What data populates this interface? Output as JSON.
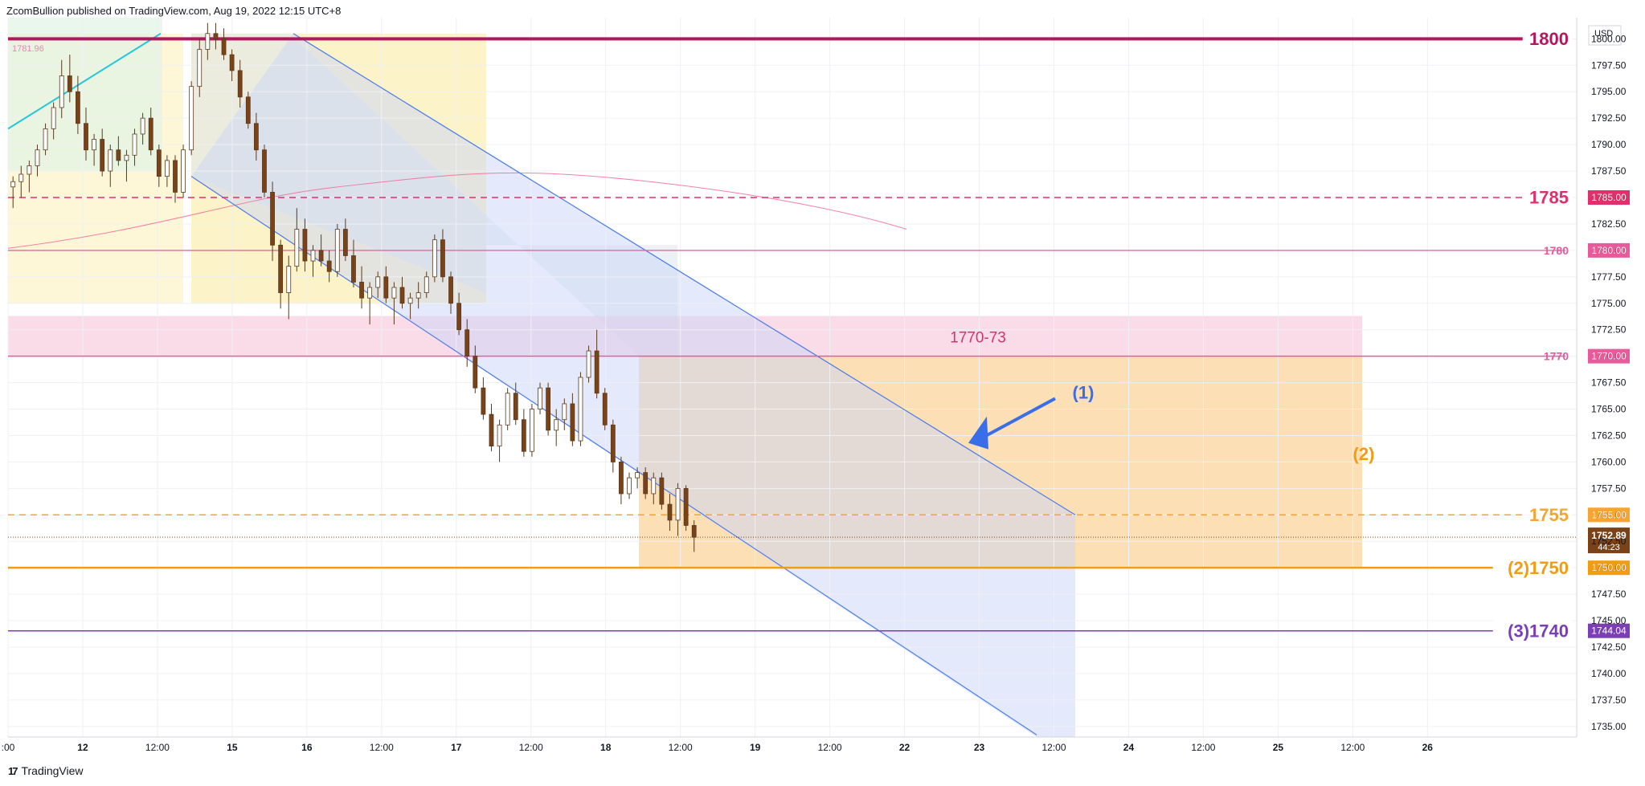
{
  "header": {
    "text": "ZcomBullion published on TradingView.com, Aug 19, 2022 12:15 UTC+8"
  },
  "footer": {
    "logo": "17",
    "brand": "TradingView"
  },
  "chart_data": {
    "type": "candlestick",
    "currency": "USD",
    "ylim": [
      1734,
      1802
    ],
    "y_ticks": [
      "1735.00",
      "1737.50",
      "1740.00",
      "1742.50",
      "1745.00",
      "1747.50",
      "1750.00",
      "1752.50",
      "1755.00",
      "1757.50",
      "1760.00",
      "1762.50",
      "1765.00",
      "1767.50",
      "1770.00",
      "1772.50",
      "1775.00",
      "1777.50",
      "1780.00",
      "1782.50",
      "1785.00",
      "1787.50",
      "1790.00",
      "1792.50",
      "1795.00",
      "1797.50",
      "1800.00"
    ],
    "x_ticks": [
      {
        "t": 0,
        "label": ":00"
      },
      {
        "t": 12,
        "label": "12"
      },
      {
        "t": 24,
        "label": "12:00"
      },
      {
        "t": 36,
        "label": "15"
      },
      {
        "t": 48,
        "label": "16"
      },
      {
        "t": 60,
        "label": "12:00"
      },
      {
        "t": 72,
        "label": "17"
      },
      {
        "t": 84,
        "label": "12:00"
      },
      {
        "t": 96,
        "label": "18"
      },
      {
        "t": 108,
        "label": "12:00"
      },
      {
        "t": 120,
        "label": "19"
      },
      {
        "t": 132,
        "label": "12:00"
      },
      {
        "t": 144,
        "label": "22"
      },
      {
        "t": 156,
        "label": "23"
      },
      {
        "t": 168,
        "label": "12:00"
      },
      {
        "t": 180,
        "label": "24"
      },
      {
        "t": 192,
        "label": "12:00"
      },
      {
        "t": 204,
        "label": "25"
      },
      {
        "t": 216,
        "label": "12:00"
      },
      {
        "t": 228,
        "label": "26"
      }
    ],
    "colors": {
      "up": "#ffffff",
      "down": "#7a4218",
      "wick": "#5a3a1e",
      "level_1800": "#b5175f",
      "level_1785": "#e0306c",
      "level_1780": "#e85a9a",
      "level_1770": "#e85a9a",
      "level_1755": "#f7a431",
      "level_1750": "#f39c12",
      "level_1740": "#7a3fb5",
      "channel": "#4e7de8",
      "annotation_blue": "#3a6ee8",
      "annotation_orange": "#f39c12"
    },
    "levels": [
      {
        "value": 1800,
        "label": "1800",
        "tag": "",
        "color": "#b5175f",
        "style": "solid",
        "width": 4,
        "font": 22
      },
      {
        "value": 1785,
        "label": "1785",
        "tag": "1785.00",
        "color": "#e0306c",
        "style": "dash",
        "width": 1.5,
        "font": 22
      },
      {
        "value": 1780,
        "label": "1780",
        "tag": "1780.00",
        "color": "#e85a9a",
        "style": "solid",
        "width": 1.2,
        "font": 14
      },
      {
        "value": 1770,
        "label": "1770",
        "tag": "1770.00",
        "color": "#e85a9a",
        "style": "solid",
        "width": 1.5,
        "font": 14
      },
      {
        "value": 1755,
        "label": "1755",
        "tag": "1755.00",
        "color": "#f7a431",
        "style": "dash",
        "width": 1.5,
        "font": 22
      },
      {
        "value": 1750,
        "label": "(2)1750",
        "tag": "1750.00",
        "color": "#f39c12",
        "style": "solid",
        "width": 2.5,
        "font": 22
      },
      {
        "value": 1744.04,
        "label": "(3)1740",
        "tag": "1744.04",
        "color": "#7a3fb5",
        "style": "solid",
        "width": 1.5,
        "font": 22
      }
    ],
    "current_price": {
      "value": 1752.89,
      "label": "1752.89",
      "countdown": "44:23",
      "color": "#7a4218"
    },
    "top_left_value": "1781.96",
    "zone_label": "1770-73",
    "annotation_1": "(1)",
    "annotation_2": "(2)",
    "candles": [
      [
        1786,
        1787,
        1784,
        1786.5
      ],
      [
        1786.5,
        1788,
        1785,
        1787.2
      ],
      [
        1787.2,
        1788.5,
        1785.5,
        1788
      ],
      [
        1788,
        1790,
        1787,
        1789.5
      ],
      [
        1789.5,
        1792,
        1789,
        1791.5
      ],
      [
        1791.5,
        1794,
        1790.5,
        1793.5
      ],
      [
        1793.5,
        1798,
        1792.5,
        1796.5
      ],
      [
        1796.5,
        1798.5,
        1794,
        1795
      ],
      [
        1795,
        1796.5,
        1791,
        1792
      ],
      [
        1792,
        1793.5,
        1788.5,
        1789.5
      ],
      [
        1789.5,
        1791,
        1788,
        1790.5
      ],
      [
        1790.5,
        1791.5,
        1787,
        1787.5
      ],
      [
        1787.5,
        1790,
        1786,
        1789.5
      ],
      [
        1789.5,
        1790.8,
        1788,
        1788.5
      ],
      [
        1788.5,
        1789.5,
        1786.5,
        1789
      ],
      [
        1789,
        1791.5,
        1788,
        1791
      ],
      [
        1791,
        1793,
        1790,
        1792.5
      ],
      [
        1792.5,
        1793.5,
        1789,
        1789.5
      ],
      [
        1789.5,
        1790,
        1786,
        1787
      ],
      [
        1787,
        1789,
        1786,
        1788.5
      ],
      [
        1788.5,
        1789,
        1784.5,
        1785.5
      ],
      [
        1785.5,
        1790,
        1785,
        1789.5
      ],
      [
        1789.5,
        1796,
        1789,
        1795.5
      ],
      [
        1795.5,
        1800,
        1794.5,
        1799
      ],
      [
        1799,
        1801.5,
        1798,
        1800.5
      ],
      [
        1800.5,
        1801.5,
        1799,
        1800
      ],
      [
        1800,
        1801,
        1798,
        1798.5
      ],
      [
        1798.5,
        1799,
        1796,
        1797
      ],
      [
        1797,
        1798,
        1793.5,
        1794.5
      ],
      [
        1794.5,
        1795,
        1791.5,
        1792
      ],
      [
        1792,
        1793,
        1788.5,
        1789.5
      ],
      [
        1789.5,
        1790,
        1785,
        1785.5
      ],
      [
        1785.5,
        1786.5,
        1779,
        1780.5
      ],
      [
        1780.5,
        1781,
        1774.5,
        1776
      ],
      [
        1776,
        1779.5,
        1773.5,
        1778.5
      ],
      [
        1778.5,
        1784,
        1778,
        1782
      ],
      [
        1782,
        1783,
        1778,
        1779
      ],
      [
        1779,
        1780.5,
        1777.5,
        1780
      ],
      [
        1780,
        1781.5,
        1778.5,
        1779
      ],
      [
        1779,
        1780,
        1777,
        1778
      ],
      [
        1778,
        1782.5,
        1777.5,
        1782
      ],
      [
        1782,
        1783,
        1779,
        1779.5
      ],
      [
        1779.5,
        1781,
        1776.5,
        1777
      ],
      [
        1777,
        1778.5,
        1774.5,
        1775.5
      ],
      [
        1775.5,
        1777,
        1773,
        1776.5
      ],
      [
        1776.5,
        1778,
        1775.5,
        1777.5
      ],
      [
        1777.5,
        1778.5,
        1775,
        1775.5
      ],
      [
        1775.5,
        1777,
        1773,
        1776.5
      ],
      [
        1776.5,
        1777.5,
        1774.5,
        1775
      ],
      [
        1775,
        1776,
        1773.5,
        1775.5
      ],
      [
        1775.5,
        1777,
        1774.5,
        1776
      ],
      [
        1776,
        1778,
        1775.5,
        1777.5
      ],
      [
        1777.5,
        1781.5,
        1777,
        1781
      ],
      [
        1781,
        1782,
        1777,
        1777.5
      ],
      [
        1777.5,
        1778,
        1774,
        1775
      ],
      [
        1775,
        1776,
        1772,
        1772.5
      ],
      [
        1772.5,
        1773.5,
        1769,
        1770
      ],
      [
        1770,
        1771,
        1766.5,
        1767
      ],
      [
        1767,
        1768,
        1764,
        1764.5
      ],
      [
        1764.5,
        1765.5,
        1761,
        1761.5
      ],
      [
        1761.5,
        1764,
        1760,
        1763.5
      ],
      [
        1763.5,
        1767,
        1763,
        1766.5
      ],
      [
        1766.5,
        1767.5,
        1763.5,
        1764
      ],
      [
        1764,
        1765,
        1760.5,
        1761
      ],
      [
        1761,
        1765.5,
        1760.5,
        1765
      ],
      [
        1765,
        1767.5,
        1764.5,
        1767
      ],
      [
        1767,
        1767.5,
        1762.5,
        1763
      ],
      [
        1763,
        1765,
        1761.5,
        1764
      ],
      [
        1764,
        1766,
        1763,
        1765.5
      ],
      [
        1765.5,
        1766.5,
        1761.5,
        1762
      ],
      [
        1762,
        1768.5,
        1761.5,
        1768
      ],
      [
        1768,
        1771,
        1767.5,
        1770.5
      ],
      [
        1770.5,
        1772.5,
        1766,
        1766.5
      ],
      [
        1766.5,
        1767,
        1763,
        1763.5
      ],
      [
        1763.5,
        1764,
        1759,
        1760
      ],
      [
        1760,
        1760.5,
        1756,
        1757
      ],
      [
        1757,
        1759,
        1756.5,
        1758.5
      ],
      [
        1758.5,
        1759.5,
        1757.5,
        1759
      ],
      [
        1759,
        1759.5,
        1756.5,
        1757
      ],
      [
        1757,
        1759,
        1756,
        1758.5
      ],
      [
        1758.5,
        1759,
        1755.5,
        1756
      ],
      [
        1756,
        1757,
        1753.5,
        1754.5
      ],
      [
        1754.5,
        1758,
        1753,
        1757.5
      ],
      [
        1757.5,
        1757.8,
        1753.5,
        1754
      ],
      [
        1754,
        1754.5,
        1751.5,
        1752.89
      ]
    ]
  }
}
